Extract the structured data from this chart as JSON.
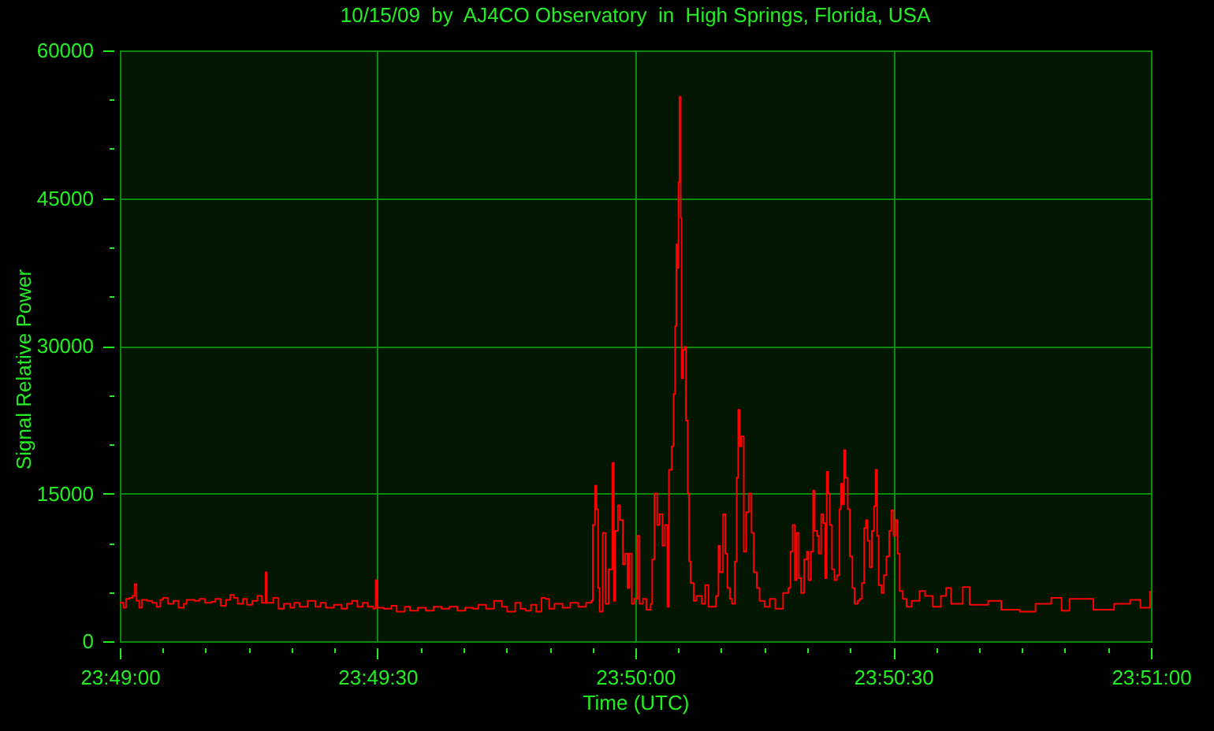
{
  "chart_data": {
    "type": "step",
    "title": "10/15/09  by  AJ4CO Observatory  in  High Springs, Florida, USA",
    "xlabel": "Time (UTC)",
    "ylabel": "Signal Relative Power",
    "x": [
      23.81667,
      23.81679,
      23.81687,
      23.81698,
      23.81708,
      23.81715,
      23.81721,
      23.8173,
      23.81738,
      23.81755,
      23.81772,
      23.81786,
      23.81798,
      23.81806,
      23.81823,
      23.8184,
      23.81857,
      23.81874,
      23.81883,
      23.81908,
      23.81925,
      23.81942,
      23.81963,
      23.81976,
      23.81993,
      23.8201,
      23.82024,
      23.82036,
      23.82048,
      23.82065,
      23.82078,
      23.82095,
      23.82112,
      23.82126,
      23.82136,
      23.82138,
      23.82141,
      23.82163,
      23.8218,
      23.82197,
      23.82218,
      23.82231,
      23.82248,
      23.82274,
      23.82299,
      23.82316,
      23.82333,
      23.82359,
      23.82384,
      23.82401,
      23.82418,
      23.82435,
      23.82452,
      23.82469,
      23.82486,
      23.82493,
      23.82494,
      23.82498,
      23.8252,
      23.82545,
      23.82562,
      23.82588,
      23.82605,
      23.8263,
      23.82656,
      23.82681,
      23.82707,
      23.82732,
      23.82758,
      23.82783,
      23.82809,
      23.82826,
      23.82851,
      23.82877,
      23.82902,
      23.82919,
      23.82945,
      23.82962,
      23.82979,
      23.82996,
      23.83013,
      23.8303,
      23.83043,
      23.83055,
      23.83072,
      23.83098,
      23.83123,
      23.83149,
      23.83174,
      23.83191,
      23.83196,
      23.83203,
      23.83208,
      23.83213,
      23.83218,
      23.83228,
      23.83237,
      23.83247,
      23.83259,
      23.83264,
      23.83269,
      23.83277,
      23.83284,
      23.83293,
      23.83301,
      23.83308,
      23.83313,
      23.83322,
      23.8333,
      23.8334,
      23.83347,
      23.83358,
      23.83369,
      23.83383,
      23.83388,
      23.83395,
      23.83404,
      23.83412,
      23.83421,
      23.83429,
      23.83437,
      23.83442,
      23.83451,
      23.83457,
      23.83462,
      23.83466,
      23.8347,
      23.83473,
      23.83476,
      23.8348,
      23.83483,
      23.83488,
      23.83493,
      23.83497,
      23.83503,
      23.83507,
      23.83512,
      23.83522,
      23.83531,
      23.83548,
      23.83559,
      23.8357,
      23.83583,
      23.83594,
      23.83602,
      23.83607,
      23.83617,
      23.83624,
      23.83631,
      23.83639,
      23.83646,
      23.83655,
      23.83661,
      23.83666,
      23.83671,
      23.83676,
      23.83684,
      23.83692,
      23.837,
      23.83709,
      23.83716,
      23.83726,
      23.83735,
      23.83751,
      23.83768,
      23.83786,
      23.83811,
      23.83828,
      23.83835,
      23.83842,
      23.83849,
      23.83855,
      23.83862,
      23.83869,
      23.83879,
      23.83888,
      23.83893,
      23.83901,
      23.83908,
      23.83913,
      23.83921,
      23.83926,
      23.83934,
      23.8394,
      23.83947,
      23.83952,
      23.83957,
      23.83962,
      23.83969,
      23.83977,
      23.83985,
      23.83993,
      23.83998,
      23.84003,
      23.84008,
      23.84013,
      23.8402,
      23.84027,
      23.84035,
      23.84042,
      23.84052,
      23.84059,
      23.84066,
      23.84073,
      23.84079,
      23.84084,
      23.84091,
      23.84098,
      23.84105,
      23.8411,
      23.84115,
      23.8412,
      23.84129,
      23.84137,
      23.84145,
      23.84154,
      23.84161,
      23.84168,
      23.84174,
      23.84181,
      23.84188,
      23.84198,
      23.8421,
      23.84227,
      23.84252,
      23.8427,
      23.84295,
      23.84321,
      23.84338,
      23.84354,
      23.84392,
      23.84414,
      23.84474,
      23.84516,
      23.84576,
      23.84627,
      23.84678,
      23.84711,
      23.84737,
      23.84814,
      23.84881,
      23.84933,
      23.84966,
      23.84997
    ],
    "series": [
      {
        "color": "#ff0000",
        "values": [
          3900,
          3400,
          4300,
          4400,
          4600,
          5800,
          4100,
          3400,
          4200,
          4100,
          3900,
          3500,
          4200,
          4400,
          3800,
          4100,
          3400,
          3800,
          4200,
          4100,
          4300,
          3900,
          4000,
          4300,
          3600,
          4200,
          4700,
          4400,
          3800,
          4300,
          3700,
          4100,
          4600,
          3900,
          3900,
          7000,
          3900,
          4400,
          3300,
          3800,
          3400,
          3900,
          3500,
          4100,
          3500,
          3900,
          3400,
          3700,
          3300,
          3800,
          4100,
          3500,
          3900,
          3500,
          3300,
          3300,
          6200,
          3400,
          3300,
          3600,
          3000,
          3500,
          3100,
          3400,
          3100,
          3500,
          3300,
          3500,
          3100,
          3400,
          3300,
          3700,
          3300,
          4100,
          3500,
          3000,
          3900,
          3300,
          3100,
          3700,
          3000,
          4400,
          4300,
          3300,
          3800,
          3400,
          3900,
          3500,
          3900,
          4100,
          11800,
          15800,
          13400,
          5400,
          3000,
          11000,
          3800,
          7300,
          18100,
          4100,
          11200,
          13800,
          12300,
          7800,
          8900,
          5400,
          8900,
          3800,
          4300,
          10700,
          3800,
          4300,
          3200,
          3800,
          8300,
          15000,
          11800,
          12900,
          9700,
          11800,
          3500,
          17400,
          19800,
          25100,
          32000,
          40300,
          37900,
          46600,
          55300,
          43000,
          26700,
          29600,
          29900,
          22400,
          15000,
          8100,
          5900,
          4100,
          4600,
          3800,
          5700,
          3500,
          3500,
          4600,
          9700,
          7000,
          12900,
          8900,
          5400,
          4300,
          3800,
          8100,
          16600,
          23500,
          19800,
          20800,
          9100,
          13100,
          15000,
          11000,
          7000,
          5400,
          4100,
          3500,
          4300,
          3300,
          4900,
          5400,
          9100,
          11800,
          6200,
          11000,
          6400,
          4900,
          8300,
          9100,
          6200,
          9100,
          15300,
          11200,
          10700,
          8900,
          12900,
          12000,
          6400,
          17200,
          15000,
          11800,
          7300,
          6200,
          6700,
          13400,
          16000,
          13900,
          19400,
          16600,
          13400,
          8600,
          5400,
          3800,
          4100,
          4300,
          5900,
          11500,
          12300,
          10200,
          7500,
          11200,
          13700,
          17400,
          10700,
          5700,
          4900,
          6700,
          8600,
          11200,
          13300,
          10700,
          12300,
          8900,
          5100,
          4300,
          3500,
          4100,
          5100,
          4600,
          3500,
          4600,
          5400,
          3800,
          5500,
          3700,
          4100,
          3200,
          3000,
          3800,
          4400,
          3100,
          4300,
          3200,
          3800,
          4200,
          3400,
          5100
        ]
      }
    ],
    "xlim": [
      23.81667,
      23.85
    ],
    "ylim": [
      0,
      60000
    ],
    "xticks": [
      {
        "value": 23.81667,
        "label": "23:49:00"
      },
      {
        "value": 23.81806,
        "label": null
      },
      {
        "value": 23.81944,
        "label": null
      },
      {
        "value": 23.82083,
        "label": null
      },
      {
        "value": 23.82222,
        "label": null
      },
      {
        "value": 23.82361,
        "label": null
      },
      {
        "value": 23.825,
        "label": "23:49:30"
      },
      {
        "value": 23.82639,
        "label": null
      },
      {
        "value": 23.82778,
        "label": null
      },
      {
        "value": 23.82917,
        "label": null
      },
      {
        "value": 23.83056,
        "label": null
      },
      {
        "value": 23.83194,
        "label": null
      },
      {
        "value": 23.83333,
        "label": "23:50:00"
      },
      {
        "value": 23.83472,
        "label": null
      },
      {
        "value": 23.83611,
        "label": null
      },
      {
        "value": 23.8375,
        "label": null
      },
      {
        "value": 23.83889,
        "label": null
      },
      {
        "value": 23.84028,
        "label": null
      },
      {
        "value": 23.84167,
        "label": "23:50:30"
      },
      {
        "value": 23.84306,
        "label": null
      },
      {
        "value": 23.84444,
        "label": null
      },
      {
        "value": 23.84583,
        "label": null
      },
      {
        "value": 23.84722,
        "label": null
      },
      {
        "value": 23.84861,
        "label": null
      },
      {
        "value": 23.85,
        "label": "23:51:00"
      }
    ],
    "yticks": [
      0,
      {
        "value": 5000,
        "label": null
      },
      {
        "value": 10000,
        "label": null
      },
      15000,
      {
        "value": 20000,
        "label": null
      },
      {
        "value": 25000,
        "label": null
      },
      30000,
      {
        "value": 35000,
        "label": null
      },
      {
        "value": 40000,
        "label": null
      },
      45000,
      {
        "value": 50000,
        "label": null
      },
      {
        "value": 55000,
        "label": null
      },
      60000
    ],
    "grid": true
  }
}
